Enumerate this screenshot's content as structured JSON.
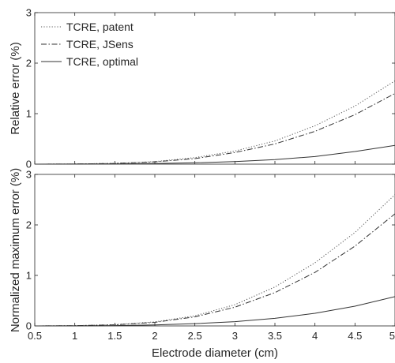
{
  "chart_data": [
    {
      "type": "line",
      "ylabel": "Relative error (%)",
      "xlabel": "",
      "xlim": [
        0.5,
        5
      ],
      "ylim": [
        0,
        3
      ],
      "xticks": [
        0.5,
        1,
        1.5,
        2,
        2.5,
        3,
        3.5,
        4,
        4.5,
        5
      ],
      "yticks": [
        0,
        1,
        2,
        3
      ],
      "show_x_tick_labels": false,
      "grid": false,
      "legend": "top-left",
      "x": [
        0.5,
        1,
        1.5,
        2,
        2.5,
        3,
        3.5,
        4,
        4.5,
        5
      ],
      "series": [
        {
          "name": "TCRE, patent",
          "style": "dotted",
          "color": "#555555",
          "values": [
            0.0,
            0.003,
            0.015,
            0.05,
            0.13,
            0.26,
            0.46,
            0.76,
            1.15,
            1.65
          ]
        },
        {
          "name": "TCRE, JSens",
          "style": "dashdot",
          "color": "#333333",
          "values": [
            0.0,
            0.003,
            0.014,
            0.045,
            0.11,
            0.23,
            0.4,
            0.65,
            0.98,
            1.4
          ]
        },
        {
          "name": "TCRE, optimal",
          "style": "solid",
          "color": "#333333",
          "values": [
            0.0,
            0.001,
            0.004,
            0.011,
            0.026,
            0.05,
            0.09,
            0.15,
            0.25,
            0.37
          ]
        }
      ]
    },
    {
      "type": "line",
      "ylabel": "Normalized maximum error (%)",
      "xlabel": "Electrode diameter (cm)",
      "xlim": [
        0.5,
        5
      ],
      "ylim": [
        0,
        3
      ],
      "xticks": [
        0.5,
        1,
        1.5,
        2,
        2.5,
        3,
        3.5,
        4,
        4.5,
        5
      ],
      "yticks": [
        0,
        1,
        2,
        3
      ],
      "show_x_tick_labels": true,
      "grid": false,
      "legend": "none",
      "x": [
        0.5,
        1,
        1.5,
        2,
        2.5,
        3,
        3.5,
        4,
        4.5,
        5
      ],
      "series": [
        {
          "name": "TCRE, patent",
          "style": "dotted",
          "color": "#555555",
          "values": [
            0.0,
            0.005,
            0.025,
            0.08,
            0.2,
            0.42,
            0.77,
            1.25,
            1.85,
            2.6
          ]
        },
        {
          "name": "TCRE, JSens",
          "style": "dashdot",
          "color": "#333333",
          "values": [
            0.0,
            0.005,
            0.022,
            0.07,
            0.18,
            0.37,
            0.66,
            1.06,
            1.58,
            2.22
          ]
        },
        {
          "name": "TCRE, optimal",
          "style": "solid",
          "color": "#333333",
          "values": [
            0.0,
            0.0015,
            0.007,
            0.02,
            0.045,
            0.085,
            0.15,
            0.25,
            0.39,
            0.58
          ]
        }
      ]
    }
  ]
}
